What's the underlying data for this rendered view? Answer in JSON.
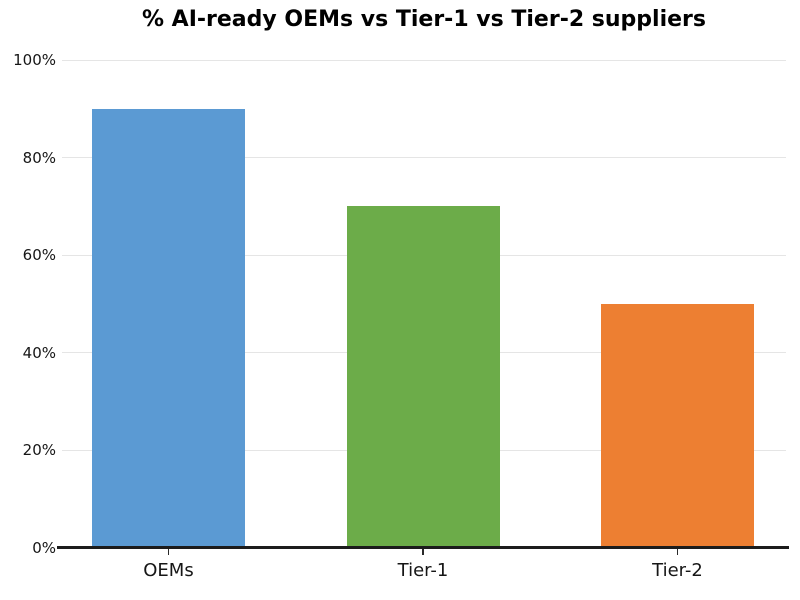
{
  "chart_data": {
    "type": "bar",
    "title": "% AI-ready OEMs vs Tier-1 vs Tier-2 suppliers",
    "categories": [
      "OEMs",
      "Tier-1",
      "Tier-2"
    ],
    "values": [
      90,
      70,
      50
    ],
    "value_unit": "%",
    "bar_colors": [
      "#5b9ad3",
      "#6cac49",
      "#ed7f32"
    ],
    "xlabel": "",
    "ylabel": "",
    "ylim": [
      0,
      100
    ],
    "yticks": [
      0,
      20,
      40,
      60,
      80,
      100
    ],
    "ytick_labels": [
      "0%",
      "20%",
      "40%",
      "60%",
      "80%",
      "100%"
    ],
    "grid": "horizontal",
    "legend": "none",
    "colors": {
      "background": "#ffffff",
      "gridline": "#e5e5e5",
      "axis_line": "#1c1c1c",
      "tick_mark": "#2a2a2a",
      "tick_text": "#161616",
      "title_text": "#000000"
    }
  }
}
